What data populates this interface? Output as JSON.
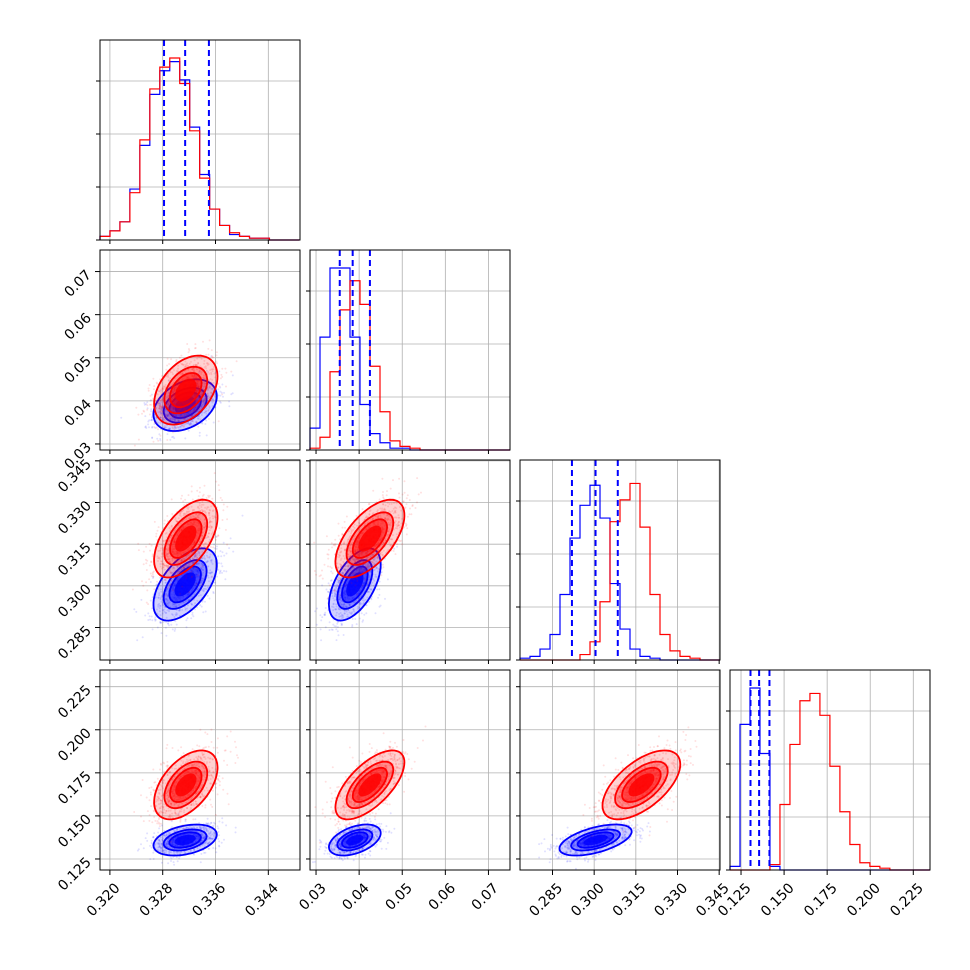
{
  "chart_data": {
    "type": "corner",
    "grid": true,
    "series": [
      {
        "name": "",
        "color": "#0000ff"
      },
      {
        "name": "",
        "color": "#ff0000"
      }
    ],
    "params": [
      {
        "range": [
          0.3185,
          0.3488
        ],
        "ticks": [
          0.32,
          0.328,
          0.336,
          0.344
        ],
        "tick_labels": [
          "0.320",
          "0.328",
          "0.336",
          "0.344"
        ],
        "quantiles": [
          0.3282,
          0.3314,
          0.335
        ],
        "hist_blue": {
          "edges_start": 0.3185,
          "bin_width": 0.00151,
          "counts": [
            0.02,
            0.05,
            0.1,
            0.28,
            0.52,
            0.8,
            0.93,
            0.98,
            0.88,
            0.62,
            0.36,
            0.17,
            0.08,
            0.03,
            0.02,
            0.01,
            0.01,
            0.0,
            0.0,
            0.0
          ]
        },
        "hist_red": {
          "edges_start": 0.3185,
          "bin_width": 0.00151,
          "counts": [
            0.02,
            0.05,
            0.1,
            0.26,
            0.55,
            0.83,
            0.95,
            1.0,
            0.86,
            0.6,
            0.34,
            0.17,
            0.08,
            0.04,
            0.02,
            0.01,
            0.01,
            0.0,
            0.0,
            0.0
          ]
        }
      },
      {
        "range": [
          0.0286,
          0.075
        ],
        "ticks": [
          0.03,
          0.04,
          0.05,
          0.06,
          0.07
        ],
        "tick_labels": [
          "0.03",
          "0.04",
          "0.05",
          "0.06",
          "0.07"
        ],
        "quantiles": [
          0.0355,
          0.0385,
          0.0425
        ],
        "hist_blue": {
          "edges_start": 0.0286,
          "bin_width": 0.00232,
          "counts": [
            0.12,
            0.62,
            1.0,
            1.0,
            0.62,
            0.25,
            0.09,
            0.04,
            0.01,
            0.01,
            0.0,
            0.0,
            0.0,
            0.0,
            0.0,
            0.0,
            0.0,
            0.0,
            0.0,
            0.0
          ]
        },
        "hist_red": {
          "edges_start": 0.0286,
          "bin_width": 0.00232,
          "counts": [
            0.01,
            0.07,
            0.43,
            0.77,
            0.93,
            0.8,
            0.46,
            0.21,
            0.05,
            0.02,
            0.01,
            0.0,
            0.0,
            0.0,
            0.0,
            0.0,
            0.0,
            0.0,
            0.0,
            0.0
          ]
        }
      },
      {
        "range": [
          0.2733,
          0.3453
        ],
        "ticks": [
          0.285,
          0.3,
          0.315,
          0.33,
          0.345
        ],
        "tick_labels": [
          "0.285",
          "0.300",
          "0.315",
          "0.330",
          "0.345"
        ],
        "quantiles": [
          0.292,
          0.3005,
          0.3085
        ],
        "hist_blue": {
          "edges_start": 0.2733,
          "bin_width": 0.0036,
          "counts": [
            0.01,
            0.02,
            0.06,
            0.14,
            0.36,
            0.67,
            0.85,
            0.96,
            0.78,
            0.42,
            0.17,
            0.06,
            0.02,
            0.01,
            0.0,
            0.0,
            0.0,
            0.0,
            0.0,
            0.0
          ]
        },
        "hist_red": {
          "edges_start": 0.2733,
          "bin_width": 0.0036,
          "counts": [
            0.0,
            0.0,
            0.0,
            0.0,
            0.0,
            0.0,
            0.03,
            0.1,
            0.32,
            0.76,
            0.88,
            0.97,
            0.73,
            0.36,
            0.14,
            0.05,
            0.02,
            0.01,
            0.0,
            0.0
          ]
        }
      },
      {
        "range": [
          0.1186,
          0.2347
        ],
        "ticks": [
          0.125,
          0.15,
          0.175,
          0.2,
          0.225
        ],
        "tick_labels": [
          "0.125",
          "0.150",
          "0.175",
          "0.200",
          "0.225"
        ],
        "quantiles": [
          0.1305,
          0.1355,
          0.1415
        ],
        "hist_blue": {
          "edges_start": 0.1186,
          "bin_width": 0.0058,
          "counts": [
            0.02,
            0.8,
            1.0,
            0.64,
            0.02,
            0.0,
            0.0,
            0.0,
            0.0,
            0.0,
            0.0,
            0.0,
            0.0,
            0.0,
            0.0,
            0.0,
            0.0,
            0.0,
            0.0,
            0.0
          ]
        },
        "hist_red": {
          "edges_start": 0.1186,
          "bin_width": 0.0058,
          "counts": [
            0.0,
            0.0,
            0.0,
            0.0,
            0.03,
            0.36,
            0.69,
            0.93,
            0.97,
            0.85,
            0.57,
            0.32,
            0.14,
            0.04,
            0.02,
            0.01,
            0.0,
            0.0,
            0.0,
            0.0
          ]
        }
      }
    ],
    "distributions": {
      "blue": {
        "mean": [
          0.3314,
          0.039,
          0.3005,
          0.136
        ],
        "sd": [
          0.0024,
          0.003,
          0.0065,
          0.0045
        ],
        "corr": [
          [
            1,
            0.35,
            0.55,
            0.35
          ],
          [
            0.35,
            1,
            0.55,
            0.45
          ],
          [
            0.55,
            0.55,
            1,
            0.55
          ],
          [
            0.35,
            0.45,
            0.55,
            1
          ]
        ]
      },
      "red": {
        "mean": [
          0.3315,
          0.0425,
          0.317,
          0.168
        ],
        "sd": [
          0.0024,
          0.004,
          0.007,
          0.01
        ],
        "corr": [
          [
            1,
            0.4,
            0.55,
            0.5
          ],
          [
            0.4,
            1,
            0.6,
            0.65
          ],
          [
            0.55,
            0.6,
            1,
            0.6
          ],
          [
            0.5,
            0.65,
            0.6,
            1
          ]
        ]
      }
    }
  }
}
